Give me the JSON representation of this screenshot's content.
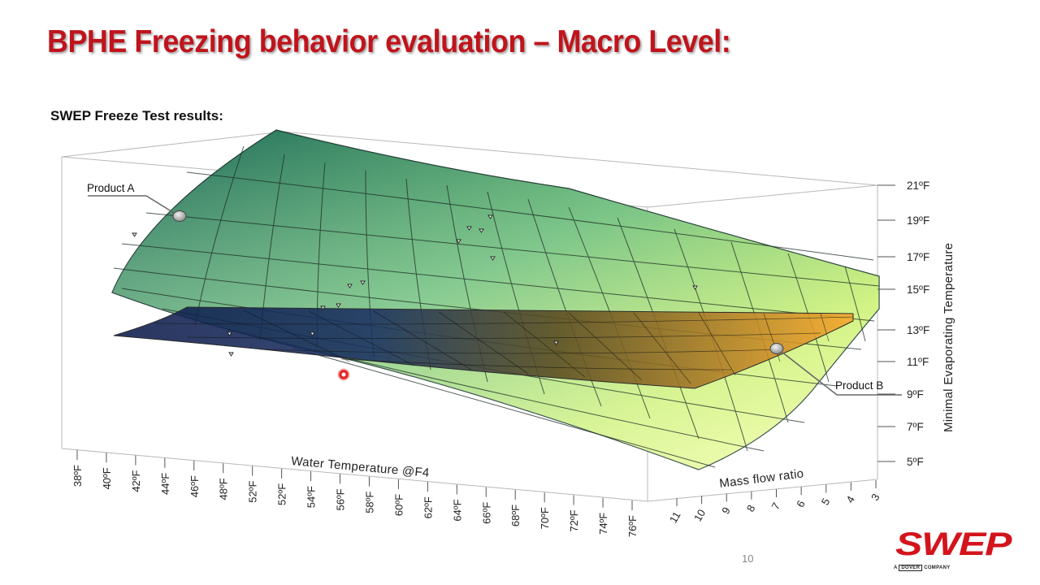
{
  "slide": {
    "title": "BPHE Freezing behavior evaluation – Macro Level:",
    "subtitle": "SWEP Freeze Test results:",
    "page_number": "10"
  },
  "logo": {
    "name": "SWEP",
    "tagline_prefix": "A",
    "tagline_boxed": "DOVER",
    "tagline_suffix": "COMPANY"
  },
  "colors": {
    "title": "#c0141c",
    "brand": "#d4141c",
    "product_a_low": "#f4ff90",
    "product_a_high": "#1f6a5a",
    "product_b_low": "#0c1a4a",
    "product_b_high": "#f7a52a"
  },
  "chart_data": {
    "type": "surface3d",
    "x_axis": {
      "label": "Water Temperature @F4",
      "ticks": [
        "38ºF",
        "40ºF",
        "42ºF",
        "44ºF",
        "46ºF",
        "48ºF",
        "52ºF",
        "52ºF",
        "54ºF",
        "56ºF",
        "58ºF",
        "60ºF",
        "62ºF",
        "64ºF",
        "66ºF",
        "68ºF",
        "70ºF",
        "72ºF",
        "74ºF",
        "76ºF"
      ]
    },
    "y_axis": {
      "label": "Mass flow ratio",
      "ticks": [
        "11",
        "10",
        "9",
        "8",
        "7",
        "6",
        "5",
        "4",
        "3"
      ]
    },
    "z_axis": {
      "label": "Minimal Evaporating Temperature",
      "ticks": [
        "21ºF",
        "19ºF",
        "17ºF",
        "15ºF",
        "13ºF",
        "11ºF",
        "9ºF",
        "7ºF",
        "5ºF"
      ],
      "range": [
        5,
        21
      ]
    },
    "surfaces": [
      {
        "name": "Product A",
        "label": "Product A",
        "z_grid": [
          [
            20,
            14,
            11,
            9,
            7.5,
            6.5
          ],
          [
            20.5,
            15.5,
            12.5,
            10.5,
            9,
            8
          ],
          [
            21,
            17,
            14,
            12,
            10.5,
            9.5
          ],
          [
            21,
            18,
            16,
            14,
            12.5,
            11.5
          ],
          [
            21,
            19,
            17,
            15.5,
            14,
            13
          ]
        ]
      },
      {
        "name": "Product B",
        "label": "Product B",
        "z_grid": [
          [
            13.5,
            13
          ],
          [
            13,
            12.5
          ]
        ]
      }
    ],
    "highlight_point": {
      "water_temp": "56ºF",
      "mass_flow_ratio": "11",
      "temperature": 10.5
    }
  }
}
